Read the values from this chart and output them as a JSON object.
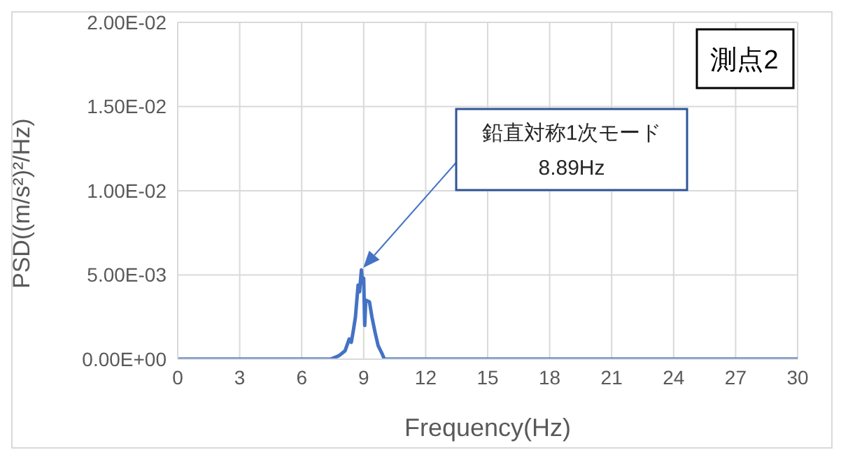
{
  "chart_data": {
    "type": "line",
    "xlabel": "Frequency(Hz)",
    "ylabel": "PSD((m/s²)²/Hz)",
    "x": [
      0,
      3,
      6,
      7.2,
      7.4,
      7.8,
      8.1,
      8.3,
      8.4,
      8.5,
      8.6,
      8.73,
      8.8,
      8.89,
      8.95,
      9.0,
      9.05,
      9.1,
      9.28,
      9.4,
      9.55,
      9.7,
      9.9,
      10.0,
      12,
      15,
      18,
      21,
      24,
      27,
      30
    ],
    "series": [
      {
        "color": "#4472c4",
        "values": [
          0,
          0,
          0,
          0,
          0,
          0.0002,
          0.0005,
          0.0012,
          0.001,
          0.0017,
          0.0025,
          0.0044,
          0.004,
          0.0053,
          0.0045,
          0.0048,
          0.002,
          0.0035,
          0.0034,
          0.0025,
          0.0016,
          0.0008,
          0.0003,
          0,
          0,
          0,
          0,
          0,
          0,
          0,
          0
        ]
      }
    ],
    "xlim": [
      0,
      30
    ],
    "xticks": [
      0,
      3,
      6,
      9,
      12,
      15,
      18,
      21,
      24,
      27,
      30
    ],
    "ylim": [
      0,
      0.02
    ],
    "yticks": [
      {
        "value": 0,
        "label": "0.00E+00"
      },
      {
        "value": 0.005,
        "label": "5.00E-03"
      },
      {
        "value": 0.01,
        "label": "1.00E-02"
      },
      {
        "value": 0.015,
        "label": "1.50E-02"
      },
      {
        "value": 0.02,
        "label": "2.00E-02"
      }
    ],
    "grid": true,
    "legend": false,
    "marker": "none",
    "line_style": "solid",
    "annotations": [
      "鉛直対称1次モード\n8.89Hz",
      "測点2"
    ]
  }
}
